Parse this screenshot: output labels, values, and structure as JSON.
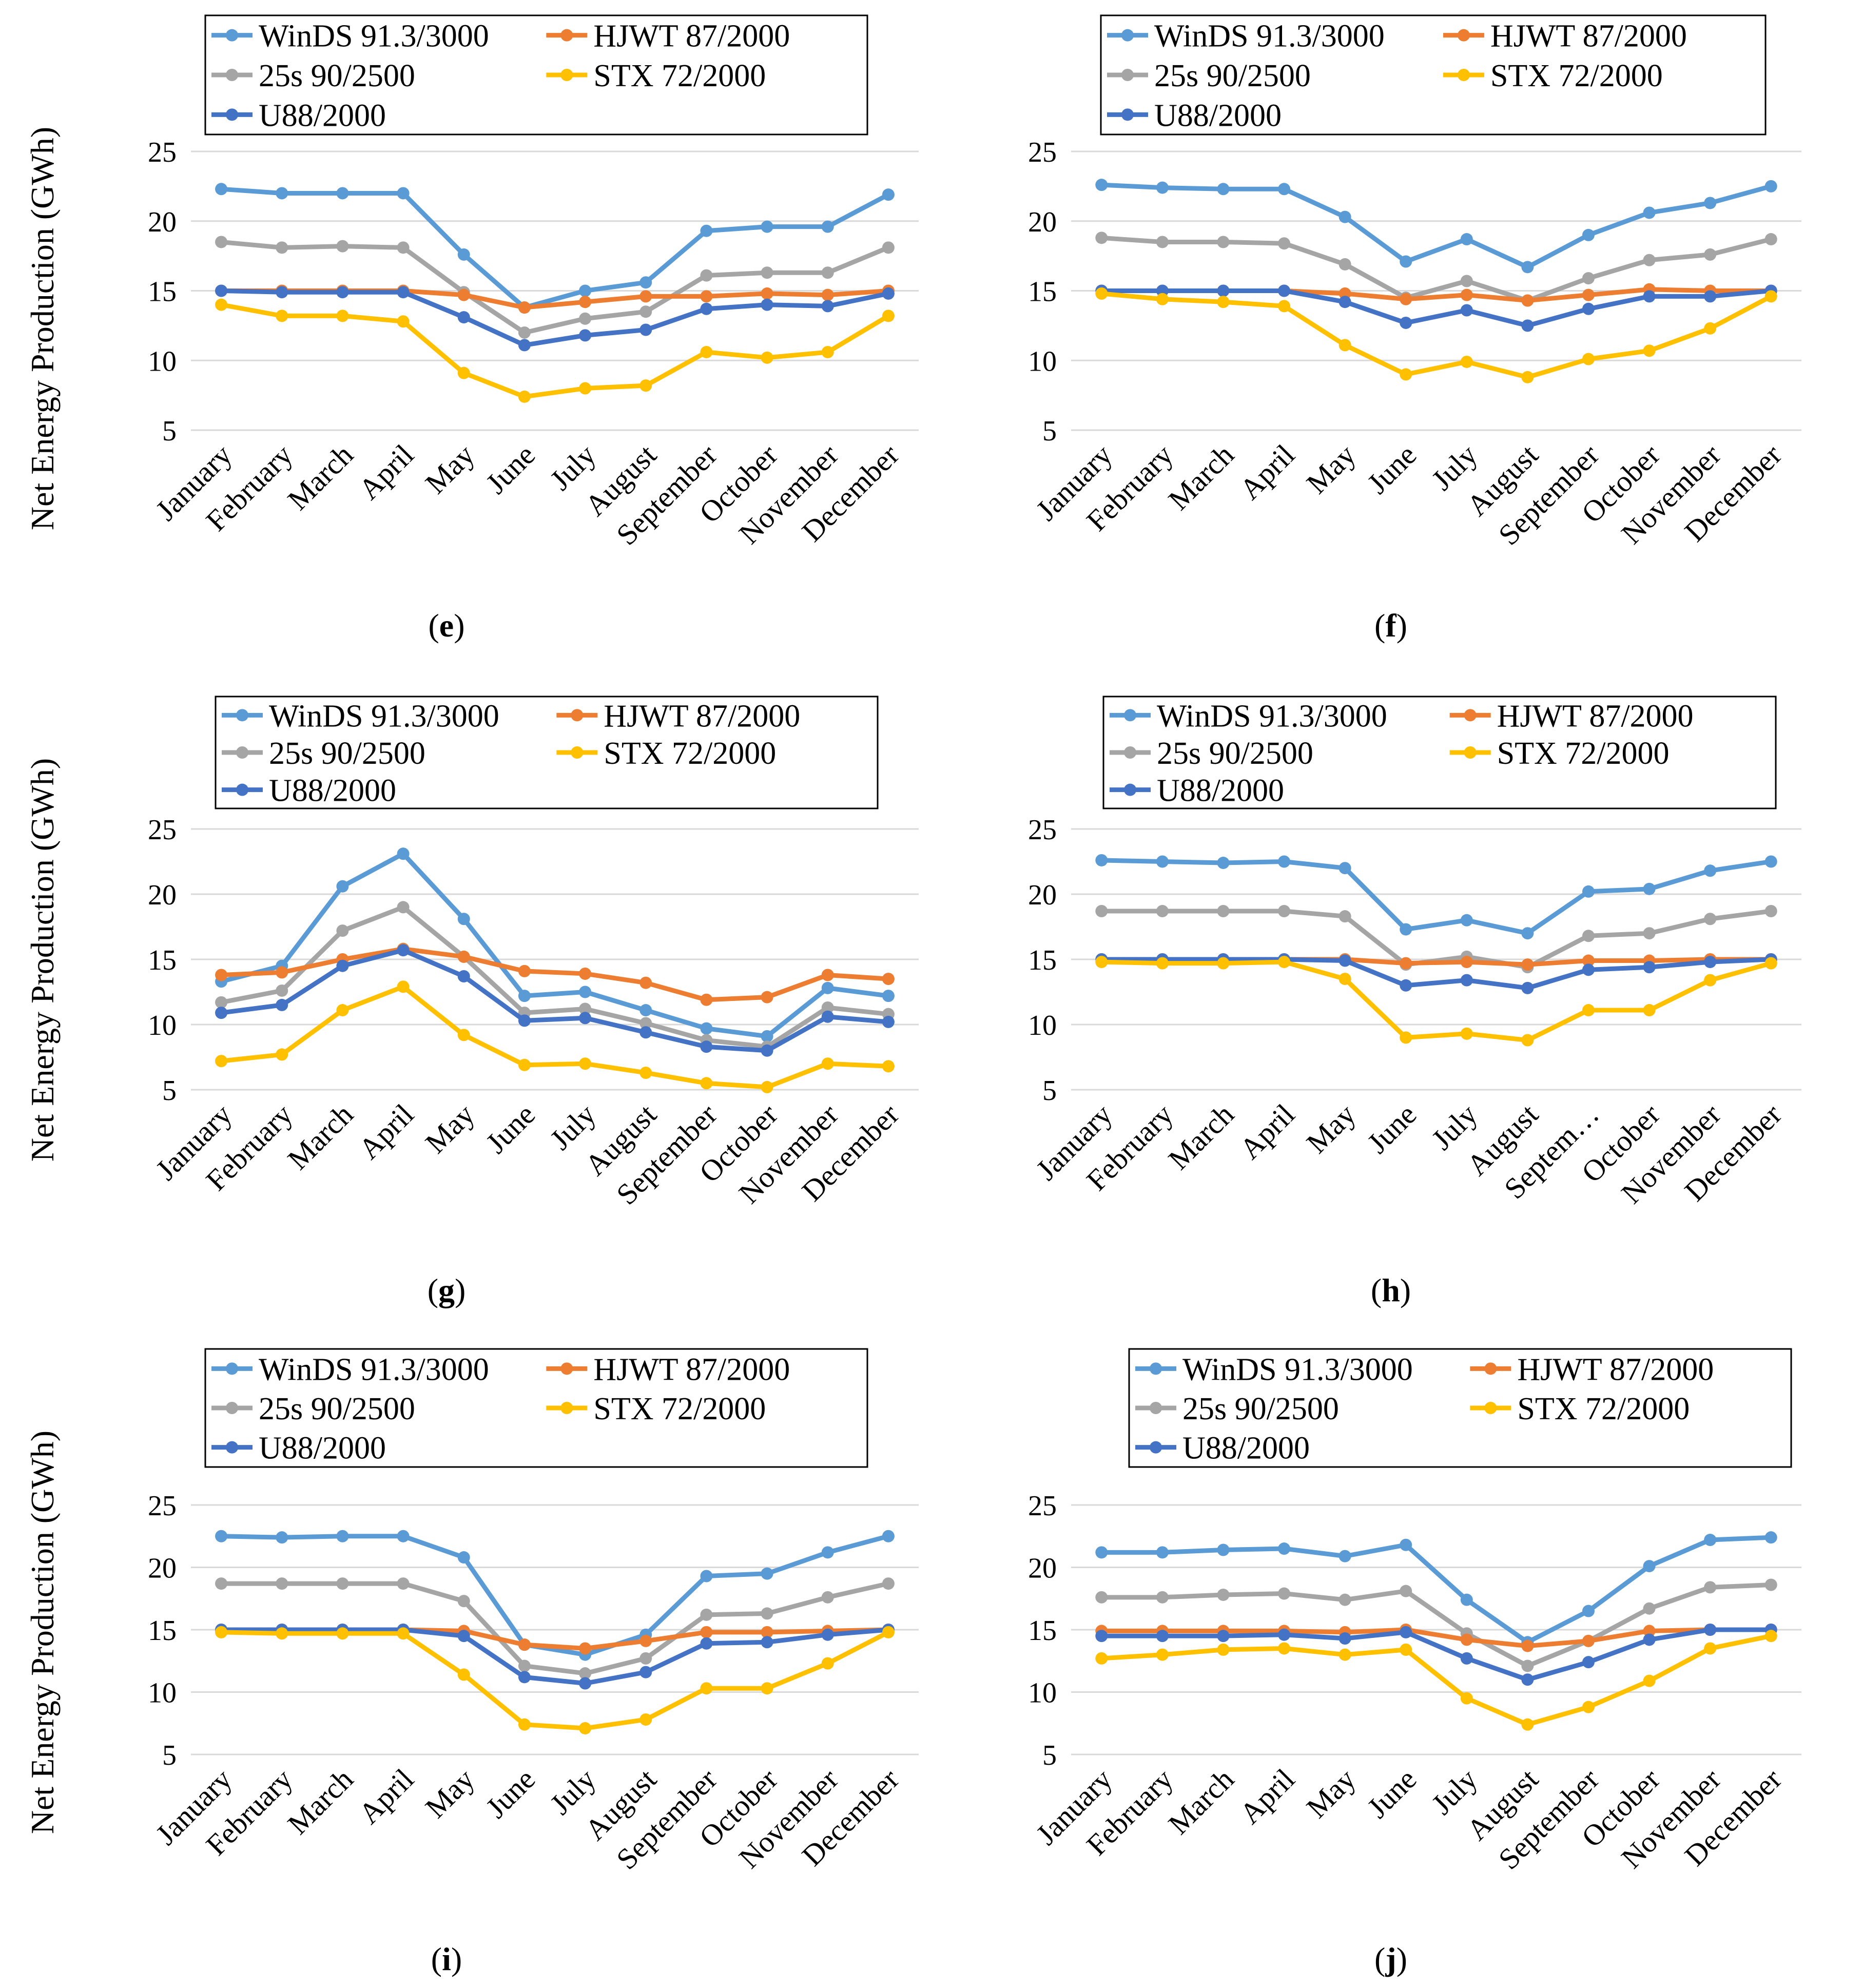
{
  "figure": {
    "y_axis_label": "Net Energy Production  (GWh)"
  },
  "series_styles": [
    {
      "name": "WinDS 91.3/3000",
      "color": "#5B9BD5"
    },
    {
      "name": "HJWT 87/2000",
      "color": "#ED7D31"
    },
    {
      "name": "25s 90/2500",
      "color": "#A5A5A5"
    },
    {
      "name": "STX 72/2000",
      "color": "#FFC000"
    },
    {
      "name": "U88/2000",
      "color": "#4472C4"
    }
  ],
  "chart_data": [
    {
      "panel": "e",
      "caption_letter": "e",
      "type": "line",
      "categories": [
        "January",
        "February",
        "March",
        "April",
        "May",
        "June",
        "July",
        "August",
        "September",
        "October",
        "November",
        "December"
      ],
      "ylim": [
        5,
        25
      ],
      "yticks": [
        5,
        10,
        15,
        20,
        25
      ],
      "legend": [
        "WinDS 91.3/3000",
        "HJWT 87/2000",
        "25s 90/2500",
        "STX 72/2000",
        "U88/2000"
      ],
      "series": [
        {
          "name": "WinDS 91.3/3000",
          "values": [
            22.3,
            22.0,
            22.0,
            22.0,
            17.6,
            13.8,
            15.0,
            15.6,
            19.3,
            19.6,
            19.6,
            21.9
          ]
        },
        {
          "name": "25s 90/2500",
          "values": [
            18.5,
            18.1,
            18.2,
            18.1,
            14.9,
            12.0,
            13.0,
            13.5,
            16.1,
            16.3,
            16.3,
            18.1
          ]
        },
        {
          "name": "HJWT 87/2000",
          "values": [
            15.0,
            15.0,
            15.0,
            15.0,
            14.7,
            13.8,
            14.2,
            14.6,
            14.6,
            14.8,
            14.7,
            15.0
          ]
        },
        {
          "name": "U88/2000",
          "values": [
            15.0,
            14.9,
            14.9,
            14.9,
            13.1,
            11.1,
            11.8,
            12.2,
            13.7,
            14.0,
            13.9,
            14.8
          ]
        },
        {
          "name": "STX 72/2000",
          "values": [
            14.0,
            13.2,
            13.2,
            12.8,
            9.1,
            7.4,
            8.0,
            8.2,
            10.6,
            10.2,
            10.6,
            13.2
          ]
        }
      ]
    },
    {
      "panel": "f",
      "caption_letter": "f",
      "type": "line",
      "categories": [
        "January",
        "February",
        "March",
        "April",
        "May",
        "June",
        "July",
        "August",
        "September",
        "October",
        "November",
        "December"
      ],
      "ylim": [
        5,
        25
      ],
      "yticks": [
        5,
        10,
        15,
        20,
        25
      ],
      "legend": [
        "WinDS 91.3/3000",
        "HJWT 87/2000",
        "25s 90/2500",
        "STX 72/2000",
        "U88/2000"
      ],
      "series": [
        {
          "name": "WinDS 91.3/3000",
          "values": [
            22.6,
            22.4,
            22.3,
            22.3,
            20.3,
            17.1,
            18.7,
            16.7,
            19.0,
            20.6,
            21.3,
            22.5
          ]
        },
        {
          "name": "25s 90/2500",
          "values": [
            18.8,
            18.5,
            18.5,
            18.4,
            16.9,
            14.5,
            15.7,
            14.3,
            15.9,
            17.2,
            17.6,
            18.7
          ]
        },
        {
          "name": "HJWT 87/2000",
          "values": [
            15.0,
            15.0,
            15.0,
            15.0,
            14.8,
            14.4,
            14.7,
            14.3,
            14.7,
            15.1,
            15.0,
            15.0
          ]
        },
        {
          "name": "U88/2000",
          "values": [
            15.0,
            15.0,
            15.0,
            15.0,
            14.2,
            12.7,
            13.6,
            12.5,
            13.7,
            14.6,
            14.6,
            15.0
          ]
        },
        {
          "name": "STX 72/2000",
          "values": [
            14.8,
            14.4,
            14.2,
            13.9,
            11.1,
            9.0,
            9.9,
            8.8,
            10.1,
            10.7,
            12.3,
            14.6
          ]
        }
      ]
    },
    {
      "panel": "g",
      "caption_letter": "g",
      "type": "line",
      "categories": [
        "January",
        "February",
        "March",
        "April",
        "May",
        "June",
        "July",
        "August",
        "September",
        "October",
        "November",
        "December"
      ],
      "ylim": [
        5,
        25
      ],
      "yticks": [
        5,
        10,
        15,
        20,
        25
      ],
      "legend": [
        "WinDS 91.3/3000",
        "HJWT 87/2000",
        "25s 90/2500",
        "STX 72/2000",
        "U88/2000"
      ],
      "series": [
        {
          "name": "WinDS 91.3/3000",
          "values": [
            13.3,
            14.5,
            20.6,
            23.1,
            18.1,
            12.2,
            12.5,
            11.1,
            9.7,
            9.1,
            12.8,
            12.2
          ]
        },
        {
          "name": "25s 90/2500",
          "values": [
            11.7,
            12.6,
            17.2,
            19.0,
            15.2,
            10.9,
            11.2,
            10.1,
            8.8,
            8.3,
            11.3,
            10.8
          ]
        },
        {
          "name": "HJWT 87/2000",
          "values": [
            13.8,
            14.0,
            15.0,
            15.8,
            15.2,
            14.1,
            13.9,
            13.2,
            11.9,
            12.1,
            13.8,
            13.5
          ]
        },
        {
          "name": "U88/2000",
          "values": [
            10.9,
            11.5,
            14.5,
            15.7,
            13.7,
            10.3,
            10.5,
            9.4,
            8.3,
            8.0,
            10.6,
            10.2
          ]
        },
        {
          "name": "STX 72/2000",
          "values": [
            7.2,
            7.7,
            11.1,
            12.9,
            9.2,
            6.9,
            7.0,
            6.3,
            5.5,
            5.2,
            7.0,
            6.8
          ]
        }
      ]
    },
    {
      "panel": "h",
      "caption_letter": "h",
      "type": "line",
      "categories": [
        "January",
        "February",
        "March",
        "April",
        "May",
        "June",
        "July",
        "August",
        "Septem…",
        "October",
        "November",
        "December"
      ],
      "ylim": [
        5,
        25
      ],
      "yticks": [
        5,
        10,
        15,
        20,
        25
      ],
      "legend": [
        "WinDS 91.3/3000",
        "HJWT 87/2000",
        "25s 90/2500",
        "STX 72/2000",
        "U88/2000"
      ],
      "series": [
        {
          "name": "WinDS 91.3/3000",
          "values": [
            22.6,
            22.5,
            22.4,
            22.5,
            22.0,
            17.3,
            18.0,
            17.0,
            20.2,
            20.4,
            21.8,
            22.5
          ]
        },
        {
          "name": "25s 90/2500",
          "values": [
            18.7,
            18.7,
            18.7,
            18.7,
            18.3,
            14.6,
            15.2,
            14.4,
            16.8,
            17.0,
            18.1,
            18.7
          ]
        },
        {
          "name": "HJWT 87/2000",
          "values": [
            15.0,
            15.0,
            15.0,
            15.0,
            15.0,
            14.7,
            14.8,
            14.6,
            14.9,
            14.9,
            15.0,
            15.0
          ]
        },
        {
          "name": "U88/2000",
          "values": [
            15.0,
            15.0,
            15.0,
            15.0,
            14.9,
            13.0,
            13.4,
            12.8,
            14.2,
            14.4,
            14.8,
            15.0
          ]
        },
        {
          "name": "STX 72/2000",
          "values": [
            14.8,
            14.7,
            14.7,
            14.8,
            13.5,
            9.0,
            9.3,
            8.8,
            11.1,
            11.1,
            13.4,
            14.7
          ]
        }
      ]
    },
    {
      "panel": "i",
      "caption_letter": "i",
      "type": "line",
      "categories": [
        "January",
        "February",
        "March",
        "April",
        "May",
        "June",
        "July",
        "August",
        "September",
        "October",
        "November",
        "December"
      ],
      "ylim": [
        5,
        25
      ],
      "yticks": [
        5,
        10,
        15,
        20,
        25
      ],
      "legend": [
        "WinDS 91.3/3000",
        "HJWT 87/2000",
        "25s 90/2500",
        "STX 72/2000",
        "U88/2000"
      ],
      "series": [
        {
          "name": "WinDS 91.3/3000",
          "values": [
            22.5,
            22.4,
            22.5,
            22.5,
            20.8,
            13.8,
            13.0,
            14.6,
            19.3,
            19.5,
            21.2,
            22.5
          ]
        },
        {
          "name": "25s 90/2500",
          "values": [
            18.7,
            18.7,
            18.7,
            18.7,
            17.3,
            12.1,
            11.5,
            12.7,
            16.2,
            16.3,
            17.6,
            18.7
          ]
        },
        {
          "name": "HJWT 87/2000",
          "values": [
            15.0,
            15.0,
            15.0,
            15.0,
            14.9,
            13.8,
            13.5,
            14.1,
            14.8,
            14.8,
            14.9,
            15.0
          ]
        },
        {
          "name": "U88/2000",
          "values": [
            15.0,
            15.0,
            15.0,
            15.0,
            14.5,
            11.2,
            10.7,
            11.6,
            13.9,
            14.0,
            14.6,
            15.0
          ]
        },
        {
          "name": "STX 72/2000",
          "values": [
            14.8,
            14.7,
            14.7,
            14.7,
            11.4,
            7.4,
            7.1,
            7.8,
            10.3,
            10.3,
            12.3,
            14.8
          ]
        }
      ]
    },
    {
      "panel": "j",
      "caption_letter": "j",
      "type": "line",
      "categories": [
        "January",
        "February",
        "March",
        "April",
        "May",
        "June",
        "July",
        "August",
        "September",
        "October",
        "November",
        "December"
      ],
      "ylim": [
        5,
        25
      ],
      "yticks": [
        5,
        10,
        15,
        20,
        25
      ],
      "legend": [
        "WinDS 91.3/3000",
        "HJWT 87/2000",
        "25s 90/2500",
        "STX 72/2000",
        "U88/2000"
      ],
      "series": [
        {
          "name": "WinDS 91.3/3000",
          "values": [
            21.2,
            21.2,
            21.4,
            21.5,
            20.9,
            21.8,
            17.4,
            14.0,
            16.5,
            20.1,
            22.2,
            22.4
          ]
        },
        {
          "name": "25s 90/2500",
          "values": [
            17.6,
            17.6,
            17.8,
            17.9,
            17.4,
            18.1,
            14.7,
            12.1,
            14.1,
            16.7,
            18.4,
            18.6
          ]
        },
        {
          "name": "HJWT 87/2000",
          "values": [
            14.9,
            14.9,
            14.9,
            14.9,
            14.8,
            15.0,
            14.2,
            13.7,
            14.1,
            14.9,
            15.0,
            15.0
          ]
        },
        {
          "name": "U88/2000",
          "values": [
            14.5,
            14.5,
            14.5,
            14.6,
            14.3,
            14.8,
            12.7,
            11.0,
            12.4,
            14.2,
            15.0,
            15.0
          ]
        },
        {
          "name": "STX 72/2000",
          "values": [
            12.7,
            13.0,
            13.4,
            13.5,
            13.0,
            13.4,
            9.5,
            7.4,
            8.8,
            10.9,
            13.5,
            14.5
          ]
        }
      ]
    }
  ]
}
